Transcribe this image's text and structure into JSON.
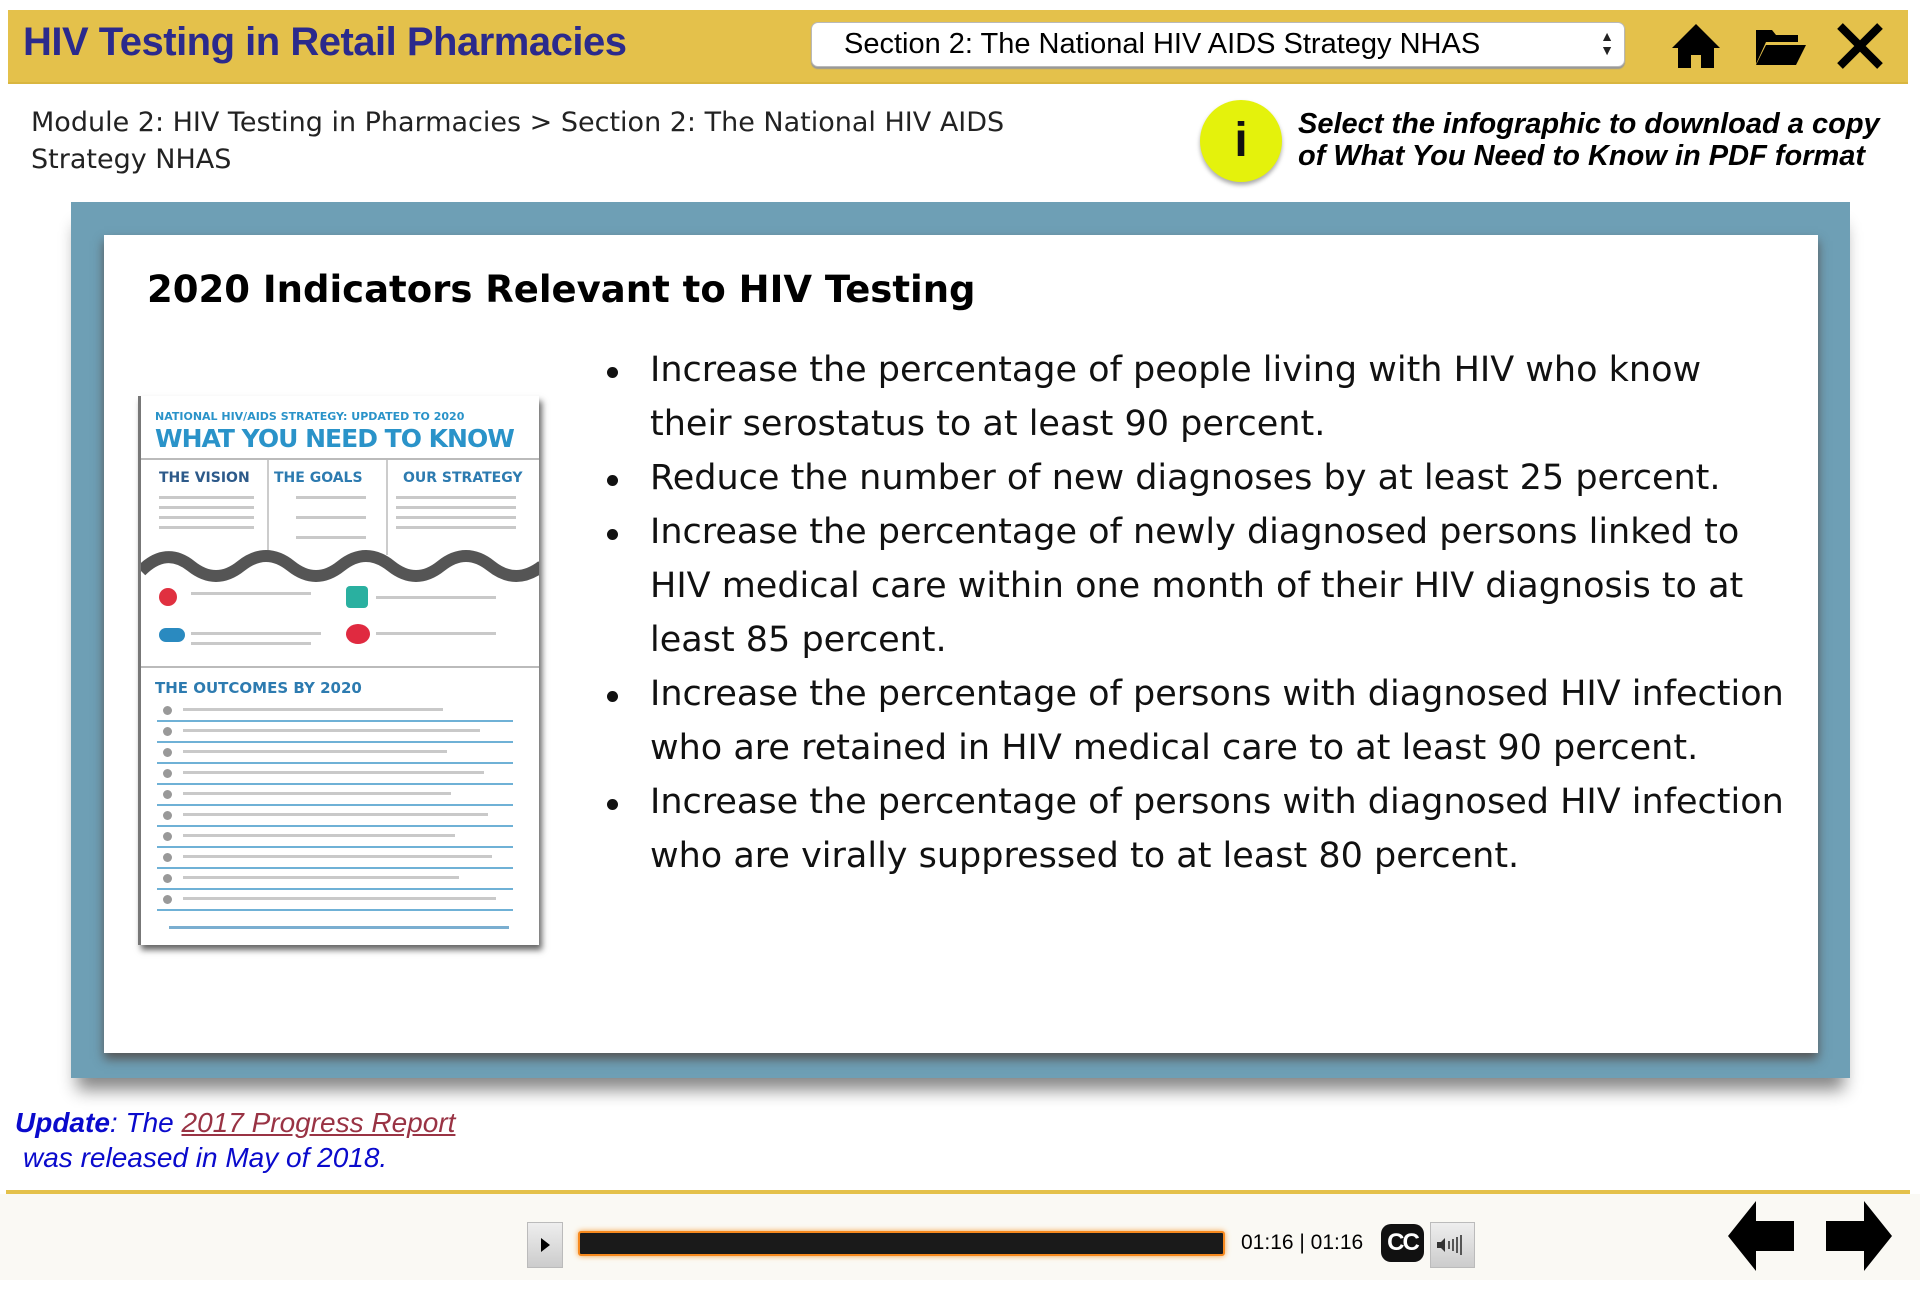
{
  "header": {
    "title": "HIV Testing in Retail Pharmacies",
    "section_select": "Section 2: The National HIV AIDS Strategy NHAS",
    "icons": [
      "home-icon",
      "folder-icon",
      "close-icon"
    ],
    "bg_color": "#e4c14b",
    "title_color": "#2b2a8c"
  },
  "breadcrumb": "Module 2: HIV Testing in Pharmacies > Section 2: The National HIV AIDS Strategy NHAS",
  "info": {
    "icon": "i",
    "text_line1": "Select the infographic to download a copy",
    "text_line2": "of  What You Need to Know in PDF format",
    "circle_color": "#e4f20c"
  },
  "content": {
    "heading": "2020 Indicators Relevant to HIV Testing",
    "bullets": [
      "Increase the percentage of people living with HIV who know their serostatus to at least 90 percent.",
      "Reduce the number of new diagnoses by at least 25 percent.",
      "Increase the percentage of newly diagnosed persons linked to HIV medical care within one month of their HIV diagnosis to at least 85 percent.",
      "Increase the percentage of persons with diagnosed HIV infection who are retained in HIV medical care to at least 90 percent.",
      "Increase the percentage of persons with diagnosed HIV infection who are virally suppressed to at least 80 percent."
    ],
    "frame_color": "#6e9fb5"
  },
  "infographic": {
    "kicker": "NATIONAL HIV/AIDS STRATEGY: UPDATED TO 2020",
    "title": "WHAT YOU NEED TO KNOW",
    "col1": "THE VISION",
    "col2": "THE GOALS",
    "col3": "OUR STRATEGY",
    "outcomes": "THE OUTCOMES BY 2020"
  },
  "update": {
    "label": "Update",
    "text_pre": ": The ",
    "link": "2017 Progress Report",
    "text_post": "was released in May of 2018."
  },
  "player": {
    "time": "01:16 | 01:16",
    "cc": "CC",
    "progress_percent": 100,
    "icons": [
      "play-icon",
      "volume-icon",
      "back-arrow-icon",
      "forward-arrow-icon"
    ]
  }
}
